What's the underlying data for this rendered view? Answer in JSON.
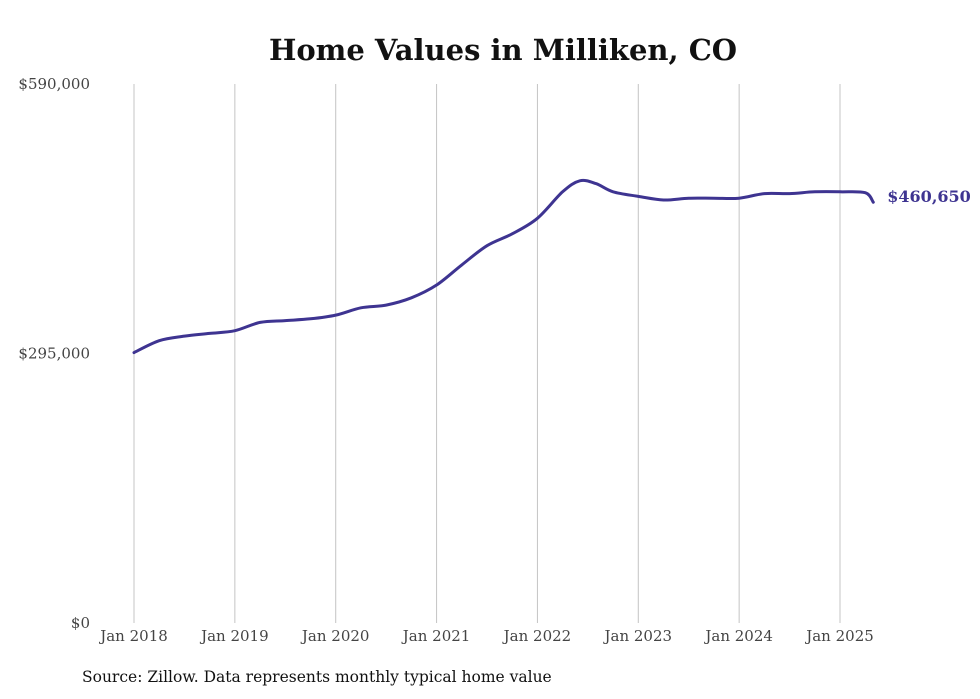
{
  "chart_data": {
    "type": "line",
    "title": "Home Values in Milliken, CO",
    "xlabel": "",
    "ylabel": "",
    "ylim": [
      0,
      590000
    ],
    "yticks": [
      {
        "value": 0,
        "label": "$0"
      },
      {
        "value": 295000,
        "label": "$295,000"
      },
      {
        "value": 590000,
        "label": "$590,000"
      }
    ],
    "xticks": [
      {
        "value": 2018,
        "label": "Jan 2018"
      },
      {
        "value": 2019,
        "label": "Jan 2019"
      },
      {
        "value": 2020,
        "label": "Jan 2020"
      },
      {
        "value": 2021,
        "label": "Jan 2021"
      },
      {
        "value": 2022,
        "label": "Jan 2022"
      },
      {
        "value": 2023,
        "label": "Jan 2023"
      },
      {
        "value": 2024,
        "label": "Jan 2024"
      },
      {
        "value": 2025,
        "label": "Jan 2025"
      }
    ],
    "grid": {
      "vertical": true,
      "horizontal": false
    },
    "line_color": "#3e3491",
    "series": [
      {
        "x": [
          2018.0,
          2018.25,
          2018.5,
          2018.75,
          2019.0,
          2019.25,
          2019.5,
          2019.75,
          2020.0,
          2020.25,
          2020.5,
          2020.75,
          2021.0,
          2021.25,
          2021.5,
          2021.75,
          2022.0,
          2022.25,
          2022.42,
          2022.58,
          2022.75,
          2023.0,
          2023.25,
          2023.5,
          2023.75,
          2024.0,
          2024.25,
          2024.5,
          2024.75,
          2025.0,
          2025.25,
          2025.33
        ],
        "y": [
          296000,
          309000,
          314000,
          317000,
          320000,
          329000,
          331000,
          333000,
          337000,
          345000,
          348000,
          356000,
          370000,
          392000,
          413000,
          426000,
          443000,
          472000,
          484000,
          481000,
          472000,
          467000,
          463000,
          465000,
          465000,
          465000,
          470000,
          470000,
          472000,
          472000,
          471000,
          460650
        ]
      }
    ],
    "end_label": "$460,650",
    "source": "Source: Zillow. Data represents monthly typical home value"
  }
}
